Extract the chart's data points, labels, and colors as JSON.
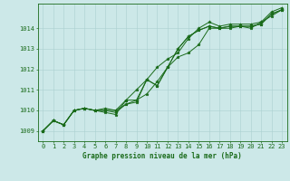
{
  "xlabel": "Graphe pression niveau de la mer (hPa)",
  "bg_color": "#cce8e8",
  "grid_color": "#aad0d0",
  "line_color": "#1a6b1a",
  "marker": "*",
  "xlim": [
    -0.5,
    23.5
  ],
  "ylim": [
    1008.5,
    1015.2
  ],
  "yticks": [
    1009,
    1010,
    1011,
    1012,
    1013,
    1014
  ],
  "xticks": [
    0,
    1,
    2,
    3,
    4,
    5,
    6,
    7,
    8,
    9,
    10,
    11,
    12,
    13,
    14,
    15,
    16,
    17,
    18,
    19,
    20,
    21,
    22,
    23
  ],
  "series": [
    [
      1009.0,
      1009.5,
      1009.3,
      1010.0,
      1010.1,
      1010.0,
      1010.0,
      1010.0,
      1010.3,
      1010.5,
      1011.5,
      1011.2,
      1012.1,
      1013.0,
      1013.6,
      1013.9,
      1014.1,
      1014.0,
      1014.1,
      1014.1,
      1014.1,
      1014.2,
      1014.7,
      1014.9
    ],
    [
      1009.0,
      1009.5,
      1009.3,
      1010.0,
      1010.1,
      1010.0,
      1010.1,
      1010.0,
      1010.5,
      1011.0,
      1011.5,
      1012.1,
      1012.5,
      1012.8,
      1013.5,
      1014.0,
      1014.3,
      1014.1,
      1014.2,
      1014.2,
      1014.2,
      1014.3,
      1014.8,
      1015.0
    ],
    [
      1009.0,
      1009.5,
      1009.3,
      1010.0,
      1010.1,
      1010.0,
      1009.9,
      1009.8,
      1010.5,
      1010.5,
      1010.8,
      1011.4,
      1012.1,
      1012.6,
      1012.8,
      1013.2,
      1014.0,
      1014.0,
      1014.0,
      1014.1,
      1014.0,
      1014.3,
      1014.6,
      1014.9
    ],
    [
      1009.0,
      1009.5,
      1009.3,
      1010.0,
      1010.1,
      1010.0,
      1010.0,
      1009.9,
      1010.3,
      1010.4,
      1011.5,
      1011.2,
      1012.1,
      1013.0,
      1013.6,
      1013.9,
      1014.1,
      1014.0,
      1014.1,
      1014.1,
      1014.1,
      1014.2,
      1014.7,
      1014.9
    ]
  ],
  "xlabel_fontsize": 5.5,
  "tick_fontsize": 5.0,
  "linewidth": 0.7,
  "markersize": 2.5
}
